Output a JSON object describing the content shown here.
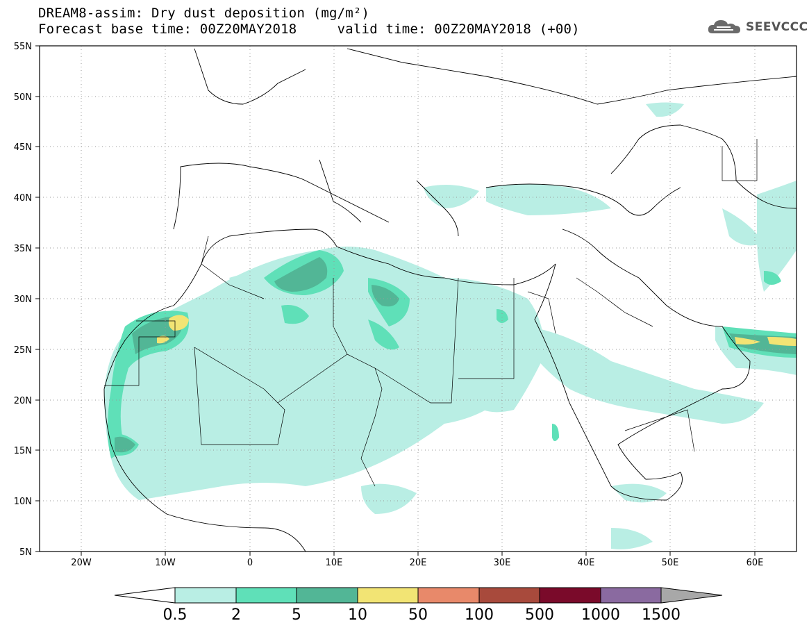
{
  "title": {
    "line1": "DREAM8-assim: Dry dust deposition (mg/m²)",
    "line2": "Forecast base time: 00Z20MAY2018     valid time: 00Z20MAY2018 (+00)"
  },
  "logo": {
    "text": "SEEVCCC",
    "icon": "cloud-icon"
  },
  "map": {
    "lat_ticks": [
      "55N",
      "50N",
      "45N",
      "40N",
      "35N",
      "30N",
      "25N",
      "20N",
      "15N",
      "10N",
      "5N"
    ],
    "lon_ticks": [
      "20W",
      "10W",
      "0",
      "10E",
      "20E",
      "30E",
      "40E",
      "50E",
      "60E"
    ],
    "extent": {
      "lon_min": -25,
      "lon_max": 65,
      "lat_min": 5,
      "lat_max": 55
    }
  },
  "colorbar": {
    "labels": [
      "0.5",
      "2",
      "5",
      "10",
      "50",
      "100",
      "500",
      "1000",
      "1500"
    ],
    "colors": [
      "#b9eee4",
      "#5fe0b8",
      "#52b696",
      "#f2e474",
      "#e8896a",
      "#a84a3c",
      "#7a0a2a",
      "#8a6aa0"
    ],
    "under_color": "#ffffff",
    "over_color": "#a8a8a8"
  }
}
